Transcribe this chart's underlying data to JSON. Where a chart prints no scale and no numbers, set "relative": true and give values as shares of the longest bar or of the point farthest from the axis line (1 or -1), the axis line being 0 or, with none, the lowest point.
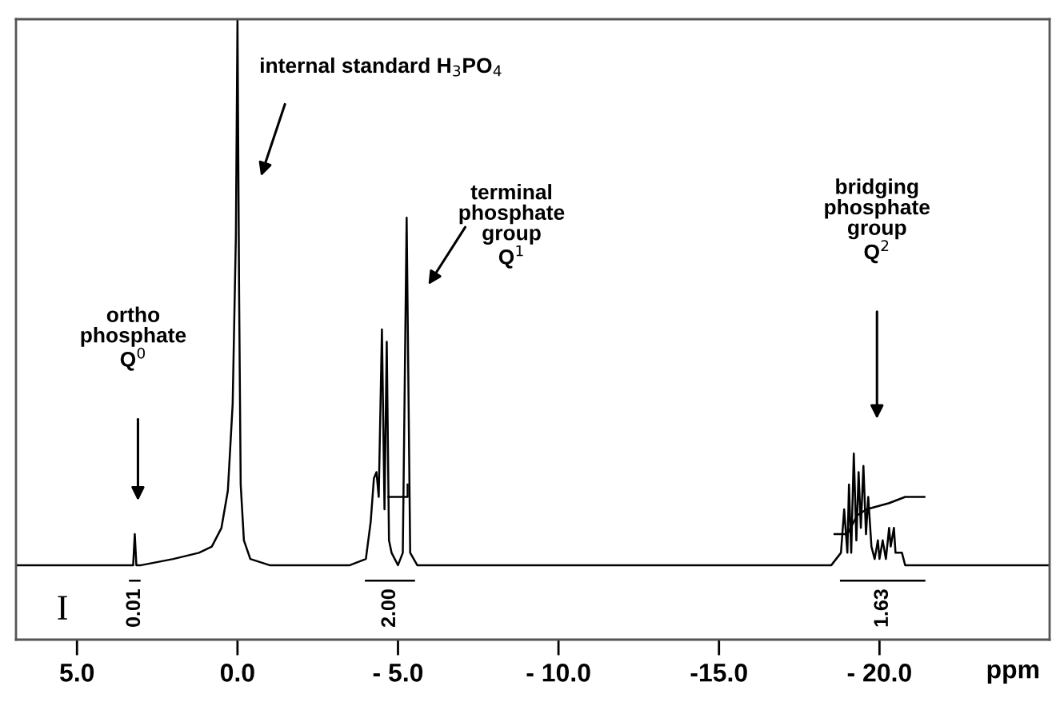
{
  "chart_data": {
    "type": "line",
    "relative": true,
    "xlabel": "ppm",
    "grid": false,
    "xlim": [
      6.9,
      -25.3
    ],
    "xticks": [
      {
        "value": 5.0,
        "label": "5.0"
      },
      {
        "value": 0.0,
        "label": "0.0"
      },
      {
        "value": -5.0,
        "label": "- 5.0"
      },
      {
        "value": -10.0,
        "label": "- 10.0"
      },
      {
        "value": -15.0,
        "label": "-15.0"
      },
      {
        "value": -20.0,
        "label": "- 20.0"
      }
    ],
    "series": [
      {
        "color": "#000000",
        "x": [
          6.9,
          4,
          3.35,
          3.25,
          3.2,
          3.15,
          3.0,
          2,
          1.2,
          0.8,
          0.5,
          0.3,
          0.15,
          0.05,
          0.0,
          -0.05,
          -0.1,
          -0.2,
          -0.4,
          -1,
          -3.5,
          -4.0,
          -4.15,
          -4.25,
          -4.33,
          -4.4,
          -4.5,
          -4.58,
          -4.65,
          -4.72,
          -4.8,
          -5.0,
          -5.15,
          -5.27,
          -5.38,
          -5.6,
          -10,
          -15,
          -18.5,
          -18.8,
          -18.9,
          -19.0,
          -19.05,
          -19.12,
          -19.2,
          -19.28,
          -19.35,
          -19.42,
          -19.5,
          -19.58,
          -19.65,
          -19.75,
          -19.85,
          -19.95,
          -20.0,
          -20.1,
          -20.2,
          -20.3,
          -20.35,
          -20.45,
          -20.5,
          -20.7,
          -20.8,
          -25.3
        ],
        "values": [
          0.12,
          0.12,
          0.12,
          0.12,
          0.17,
          0.12,
          0.12,
          0.13,
          0.14,
          0.15,
          0.18,
          0.24,
          0.38,
          0.65,
          1.0,
          0.56,
          0.25,
          0.16,
          0.13,
          0.12,
          0.12,
          0.13,
          0.19,
          0.26,
          0.27,
          0.23,
          0.5,
          0.21,
          0.48,
          0.16,
          0.14,
          0.12,
          0.14,
          0.68,
          0.14,
          0.12,
          0.12,
          0.12,
          0.12,
          0.14,
          0.21,
          0.14,
          0.25,
          0.14,
          0.3,
          0.16,
          0.27,
          0.18,
          0.28,
          0.17,
          0.23,
          0.15,
          0.13,
          0.16,
          0.13,
          0.16,
          0.13,
          0.18,
          0.15,
          0.18,
          0.14,
          0.14,
          0.12,
          0.12
        ]
      },
      {
        "color": "#000000",
        "x": [
          -4.7,
          -5.3,
          -5.3
        ],
        "values": [
          0.23,
          0.23,
          0.25
        ]
      },
      {
        "color": "#000000",
        "x": [
          -18.6,
          -19.0,
          -19.3,
          -19.6,
          -20.3,
          -20.8,
          -21.4
        ],
        "values": [
          0.17,
          0.17,
          0.2,
          0.21,
          0.22,
          0.23,
          0.23
        ]
      },
      {
        "color": "#000000",
        "x": [
          3.05,
          3.35
        ],
        "values": [
          0.095,
          0.095
        ]
      },
      {
        "color": "#000000",
        "x": [
          -4.0,
          -5.5
        ],
        "values": [
          0.095,
          0.095
        ]
      },
      {
        "color": "#000000",
        "x": [
          -18.8,
          -21.4
        ],
        "values": [
          0.095,
          0.095
        ]
      }
    ],
    "annotations": [
      {
        "text": "0.01",
        "x": 3.2,
        "y": 0.095
      },
      {
        "text": "2.00",
        "x": -4.75,
        "y": 0.095
      },
      {
        "text": "1.63",
        "x": -20.1,
        "y": 0.095
      },
      "ortho\nphosphate\nQ$^{0}$",
      "internal standard H$_{3}$PO$_{4}$",
      "terminal\nphosphate\ngroup\nQ$^{1}$",
      "bridging\nphosphate\ngroup\nQ$^{2}$",
      "I"
    ]
  }
}
